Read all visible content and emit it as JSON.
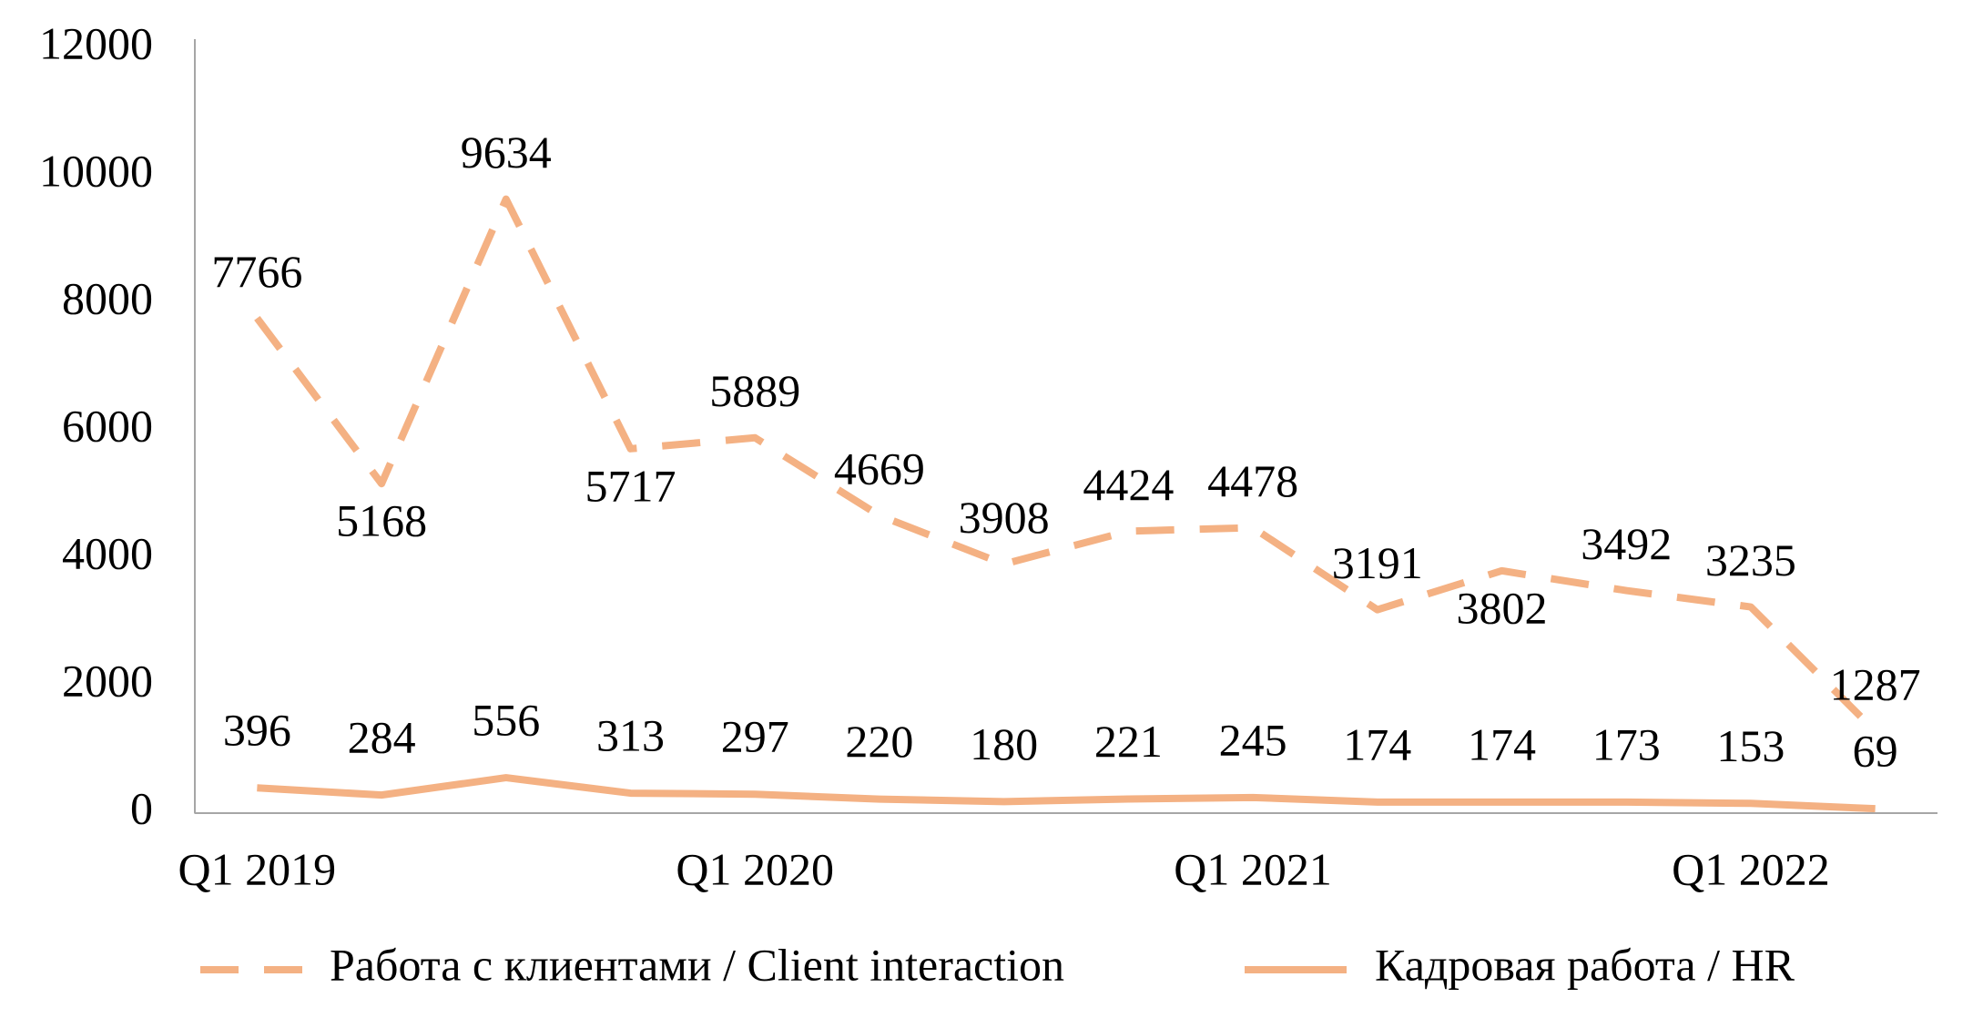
{
  "chart_data": {
    "type": "line",
    "categories": [
      "Q1 2019",
      null,
      null,
      null,
      "Q1 2020",
      null,
      null,
      null,
      "Q1 2021",
      null,
      null,
      null,
      "Q1 2022",
      null
    ],
    "series": [
      {
        "name": "Работа с клиентами / Client interaction",
        "color": "#f4b183",
        "dashed": true,
        "values": [
          7766,
          5168,
          9634,
          5717,
          5889,
          4669,
          3908,
          4424,
          4478,
          3191,
          3802,
          3492,
          3235,
          1287
        ]
      },
      {
        "name": "Кадровая работа / HR",
        "color": "#f4b183",
        "dashed": false,
        "values": [
          396,
          284,
          556,
          313,
          297,
          220,
          180,
          221,
          245,
          174,
          174,
          173,
          153,
          69
        ]
      }
    ],
    "ylim": [
      0,
      12000
    ],
    "yticks": [
      0,
      2000,
      4000,
      6000,
      8000,
      10000,
      12000
    ],
    "grid": false,
    "legend": "bottom"
  }
}
